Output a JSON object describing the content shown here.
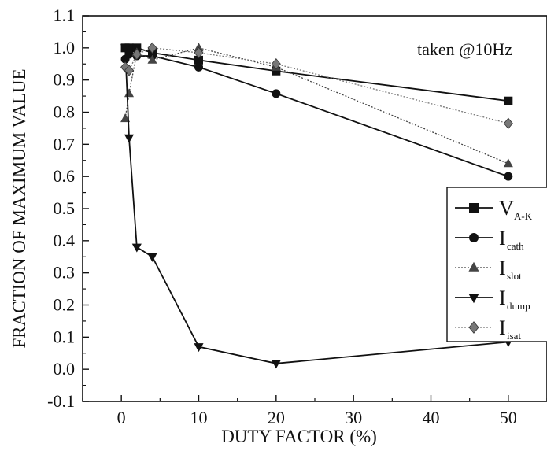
{
  "chart_data": {
    "type": "line",
    "title": "",
    "xlabel": "DUTY FACTOR (%)",
    "ylabel": "FRACTION OF MAXIMUM VALUE",
    "xlim": [
      -5,
      55
    ],
    "ylim": [
      -0.1,
      1.1
    ],
    "xticks": [
      "0",
      "10",
      "20",
      "30",
      "40",
      "50"
    ],
    "yticks": [
      "-0.1",
      "0.0",
      "0.1",
      "0.2",
      "0.3",
      "0.4",
      "0.5",
      "0.6",
      "0.7",
      "0.8",
      "0.9",
      "1.0",
      "1.1"
    ],
    "grid": false,
    "legend_position": "right",
    "annotation": "taken @10Hz",
    "series": [
      {
        "name": "V",
        "subscript": "A-K",
        "marker": "square",
        "line": "solid",
        "color": "#111111",
        "points": [
          [
            0.5,
            1.0
          ],
          [
            1,
            1.0
          ],
          [
            2,
            1.0
          ],
          [
            4,
            0.985
          ],
          [
            10,
            0.962
          ],
          [
            20,
            0.928
          ],
          [
            50,
            0.835
          ]
        ]
      },
      {
        "name": "I",
        "subscript": "cath",
        "marker": "circle",
        "line": "solid",
        "color": "#111111",
        "points": [
          [
            0.5,
            0.965
          ],
          [
            1,
            0.98
          ],
          [
            2,
            0.975
          ],
          [
            4,
            0.975
          ],
          [
            10,
            0.94
          ],
          [
            20,
            0.858
          ],
          [
            50,
            0.6
          ]
        ]
      },
      {
        "name": "I",
        "subscript": "slot",
        "marker": "triangle-up",
        "line": "dotted",
        "color": "#444444",
        "points": [
          [
            0.5,
            0.78
          ],
          [
            1,
            0.858
          ],
          [
            2,
            0.985
          ],
          [
            4,
            0.962
          ],
          [
            10,
            1.0
          ],
          [
            20,
            0.94
          ],
          [
            50,
            0.64
          ]
        ]
      },
      {
        "name": "I",
        "subscript": "dump",
        "marker": "triangle-down",
        "line": "solid",
        "color": "#111111",
        "points": [
          [
            0.5,
            1.0
          ],
          [
            1,
            0.72
          ],
          [
            2,
            0.38
          ],
          [
            4,
            0.35
          ],
          [
            10,
            0.07
          ],
          [
            20,
            0.018
          ],
          [
            50,
            0.085
          ]
        ]
      },
      {
        "name": "I",
        "subscript": "isat",
        "marker": "diamond",
        "line": "dotted",
        "color": "#777777",
        "points": [
          [
            0.5,
            0.94
          ],
          [
            1,
            0.93
          ],
          [
            2,
            0.98
          ],
          [
            4,
            1.0
          ],
          [
            10,
            0.985
          ],
          [
            20,
            0.95
          ],
          [
            50,
            0.765
          ]
        ]
      }
    ]
  }
}
